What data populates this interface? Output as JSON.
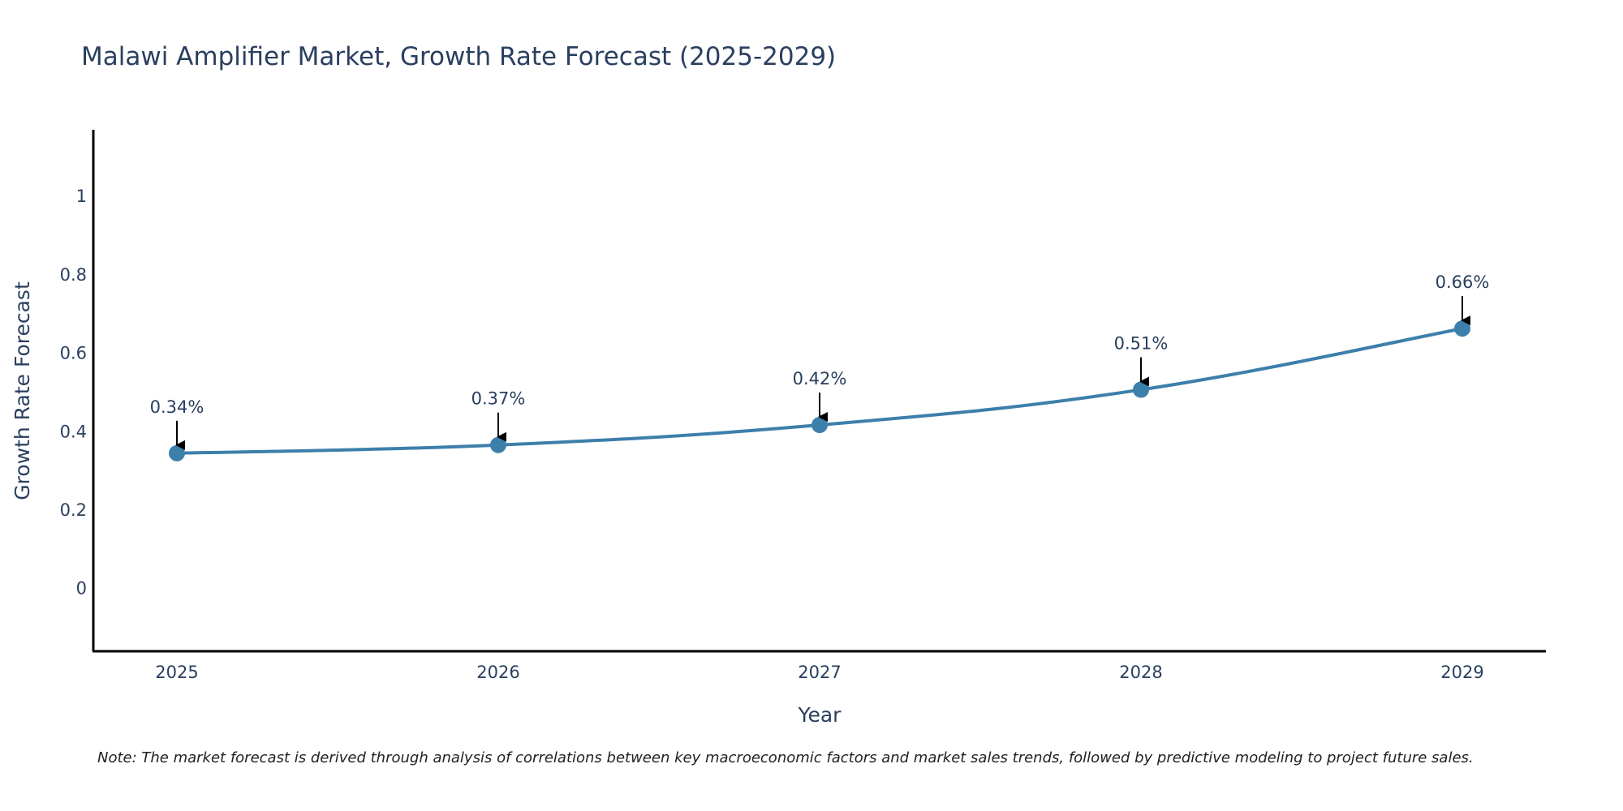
{
  "chart_data": {
    "type": "line",
    "title": "Malawi Amplifier Market, Growth Rate Forecast (2025-2029)",
    "xlabel": "Year",
    "ylabel": "Growth Rate Forecast",
    "categories": [
      "2025",
      "2026",
      "2027",
      "2028",
      "2029"
    ],
    "series": [
      {
        "name": "Growth Rate Forecast",
        "values": [
          0.345,
          0.366,
          0.417,
          0.507,
          0.663
        ],
        "labels": [
          "0.34%",
          "0.37%",
          "0.42%",
          "0.51%",
          "0.66%"
        ]
      }
    ],
    "ylim": [
      -0.16,
      1.17
    ],
    "yticks": [
      0,
      0.2,
      0.4,
      0.6,
      0.8,
      1
    ],
    "ytick_labels": [
      "0",
      "0.2",
      "0.4",
      "0.6",
      "0.8",
      "1"
    ],
    "grid": false,
    "legend": "none",
    "line_color": "#3d7fab",
    "marker_color": "#3d7fab",
    "axis_color": "#000000",
    "text_color": "#2a3f5f",
    "note": "Note: The market forecast is derived through analysis of correlations between key macroeconomic factors and market sales trends, followed by predictive modeling to project future sales."
  }
}
